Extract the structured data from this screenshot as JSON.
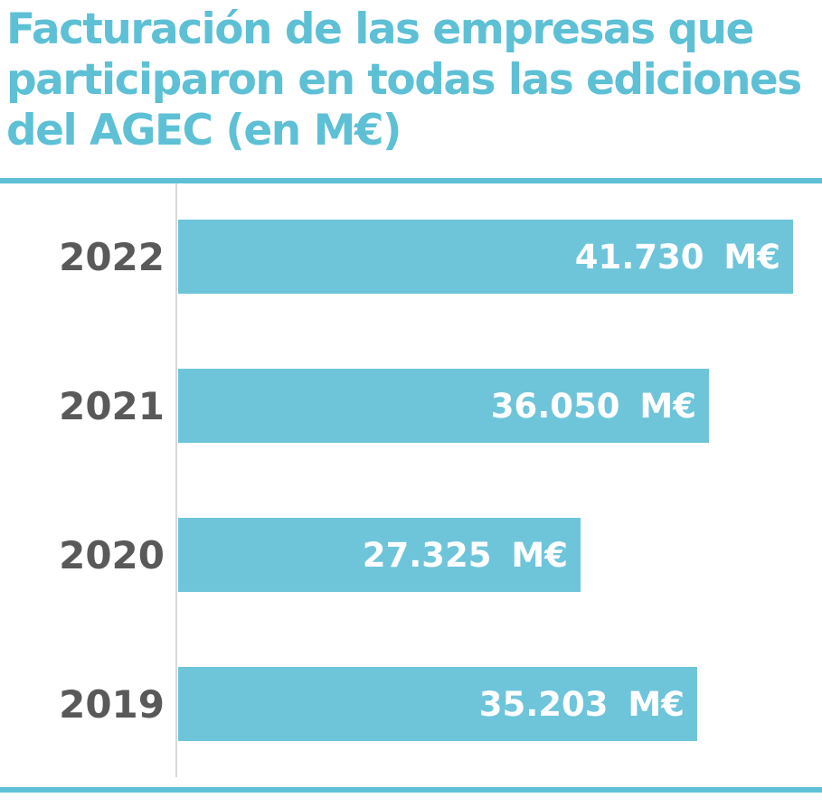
{
  "title": {
    "lines": [
      "Facturación de las empresas que",
      "participaron en todas las ediciones",
      "del AGEC (en M€)"
    ]
  },
  "colors": {
    "accent_blue": "#5ec0d5",
    "bar_blue": "#6ec5da",
    "label_gray": "#595959",
    "axis_gray": "#d9d9d9",
    "value_text": "#ffffff"
  },
  "chart_data": {
    "type": "bar",
    "orientation": "horizontal",
    "title": "Facturación de las empresas que participaron en todas las ediciones del AGEC (en M€)",
    "categories": [
      "2022",
      "2021",
      "2020",
      "2019"
    ],
    "values": [
      41730,
      36050,
      27325,
      35203
    ],
    "value_labels": [
      "41.730 M€",
      "36.050 M€",
      "27.325 M€",
      "35.203 M€"
    ],
    "unit": "M€",
    "xlim": [
      0,
      43500
    ],
    "grid": false,
    "legend": false,
    "value_label_position": "inside-end",
    "category_label_position": "left"
  }
}
